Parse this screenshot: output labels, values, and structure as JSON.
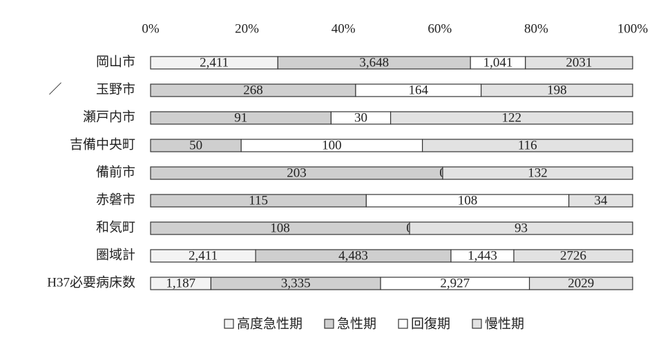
{
  "chart_data": {
    "type": "stacked-bar-100",
    "annotation": "／",
    "categories": [
      "岡山市",
      "玉野市",
      "瀬戸内市",
      "吉備中央町",
      "備前市",
      "赤磐市",
      "和気町",
      "圏域計",
      "H37必要病床数"
    ],
    "series": [
      {
        "name": "高度急性期",
        "color": "#f3f3f3",
        "values": [
          2411,
          0,
          0,
          0,
          0,
          0,
          0,
          2411,
          1187
        ],
        "value_labels": [
          "2,411",
          "0",
          "0",
          "0",
          "0",
          "0",
          "0",
          "2,411",
          "1,187"
        ]
      },
      {
        "name": "急性期",
        "color": "#cfcfcf",
        "values": [
          3648,
          268,
          91,
          50,
          203,
          115,
          108,
          4483,
          3335
        ],
        "value_labels": [
          "3,648",
          "268",
          "91",
          "50",
          "203",
          "115",
          "108",
          "4,483",
          "3,335"
        ]
      },
      {
        "name": "回復期",
        "color": "#ffffff",
        "values": [
          1041,
          164,
          30,
          100,
          0,
          108,
          0,
          1443,
          2927
        ],
        "value_labels": [
          "1,041",
          "164",
          "30",
          "100",
          "0",
          "108",
          "0",
          "1,443",
          "2,927"
        ]
      },
      {
        "name": "慢性期",
        "color": "#e2e2e2",
        "values": [
          2031,
          198,
          122,
          116,
          132,
          34,
          93,
          2726,
          2029
        ]
      }
    ],
    "xlim": [
      0,
      100
    ],
    "xticks": [
      {
        "value": 0,
        "label": "0%"
      },
      {
        "value": 20,
        "label": "20%"
      },
      {
        "value": 40,
        "label": "40%"
      },
      {
        "value": 60,
        "label": "60%"
      },
      {
        "value": 80,
        "label": "80%"
      },
      {
        "value": 100,
        "label": "100%"
      }
    ]
  }
}
